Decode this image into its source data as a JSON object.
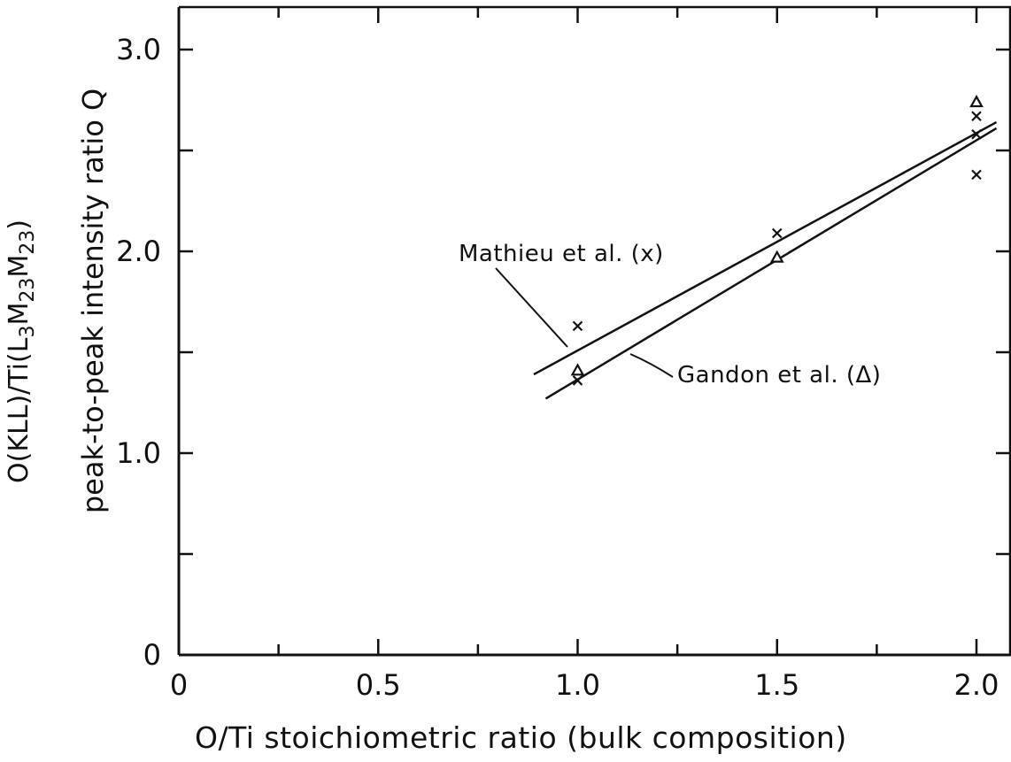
{
  "chart_data": {
    "type": "scatter",
    "xlabel": "O/Ti stoichiometric ratio (bulk composition)",
    "ylabel_line1": "O(KLL)/Ti(L3M23M23)",
    "ylabel_line2": "peak-to-peak intensity ratio Q",
    "xlim": [
      0,
      2.05
    ],
    "ylim": [
      0,
      3.2
    ],
    "x_ticks": [
      "0",
      "0.5",
      "1.0",
      "1.5",
      "2.0"
    ],
    "y_ticks": [
      "0",
      "1.0",
      "2.0",
      "3.0"
    ],
    "grid": false,
    "series": [
      {
        "name": "Mathieu et al. (x)",
        "marker": "x",
        "points": [
          [
            1.0,
            1.63
          ],
          [
            1.0,
            1.36
          ],
          [
            1.5,
            2.09
          ],
          [
            2.0,
            2.67
          ],
          [
            2.0,
            2.58
          ],
          [
            2.0,
            2.38
          ]
        ],
        "fit_line": [
          [
            0.89,
            1.39
          ],
          [
            2.05,
            2.64
          ]
        ]
      },
      {
        "name": "Gandon et al. (Δ)",
        "marker": "triangle",
        "points": [
          [
            1.0,
            1.41
          ],
          [
            1.5,
            1.97
          ],
          [
            2.0,
            2.74
          ]
        ],
        "fit_line": [
          [
            0.92,
            1.27
          ],
          [
            2.05,
            2.61
          ]
        ]
      }
    ],
    "annotations": {
      "mathieu": "Mathieu et al. (x)",
      "gandon": "Gandon et al. (Δ)"
    }
  }
}
